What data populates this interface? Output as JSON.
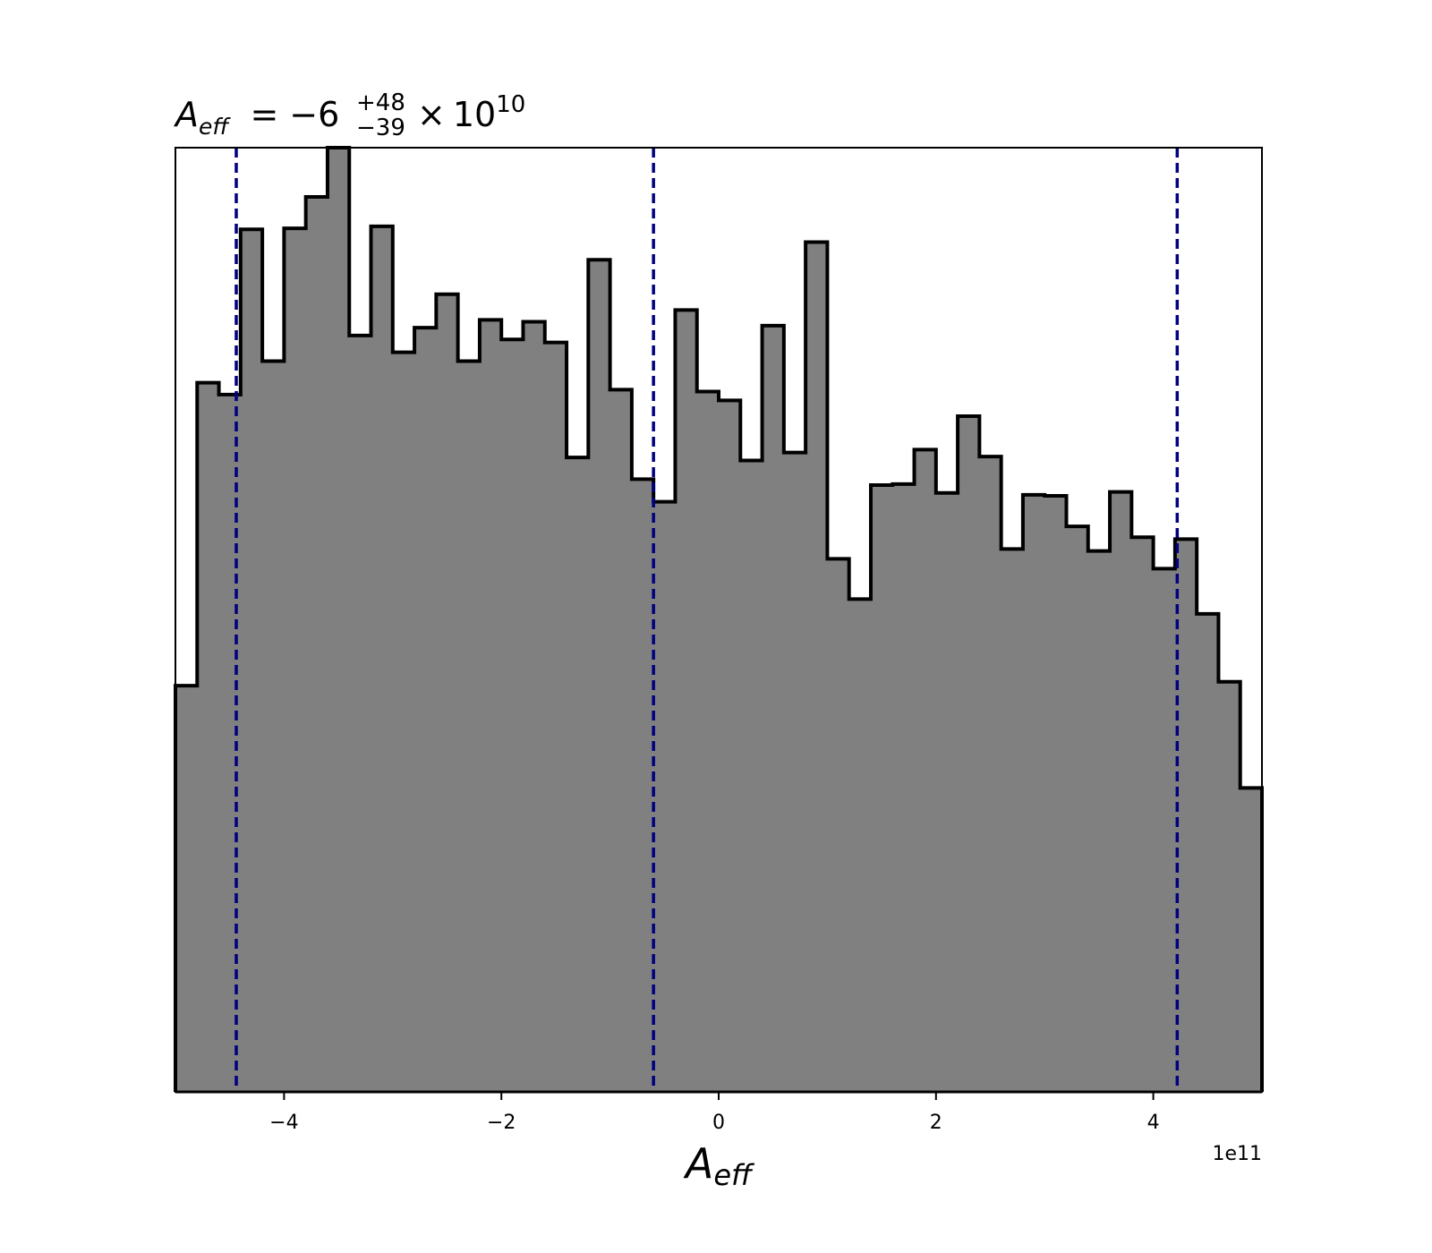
{
  "chart_data": {
    "type": "bar",
    "title": {
      "symbol": "A",
      "symbol_sub": "eff",
      "equals": "=",
      "value": "−6",
      "err_plus": "+48",
      "err_minus": "−39",
      "times": "×",
      "base": "10",
      "exponent": "10"
    },
    "xlabel": {
      "symbol": "A",
      "sub": "eff"
    },
    "offset_text": "1e11",
    "x_tick_values": [
      -4,
      -2,
      0,
      2,
      4
    ],
    "x_tick_labels": [
      "−4",
      "−2",
      "0",
      "2",
      "4"
    ],
    "xlim": [
      -5.0,
      5.0
    ],
    "ylim": [
      0,
      96
    ],
    "y_axis_visible": false,
    "grid": false,
    "bin_edges": [
      -5.0,
      -4.8,
      -4.6,
      -4.4,
      -4.2,
      -4.0,
      -3.8,
      -3.6,
      -3.4,
      -3.2,
      -3.0,
      -2.8,
      -2.6,
      -2.4,
      -2.2,
      -2.0,
      -1.8,
      -1.6,
      -1.4,
      -1.2,
      -1.0,
      -0.8,
      -0.6,
      -0.4,
      -0.2,
      0.0,
      0.2,
      0.4,
      0.6,
      0.8,
      1.0,
      1.2,
      1.4,
      1.6,
      1.8,
      2.0,
      2.2,
      2.4,
      2.6,
      2.8,
      3.0,
      3.2,
      3.4,
      3.6,
      3.8,
      4.0,
      4.2,
      4.4,
      4.6,
      4.8,
      5.0
    ],
    "counts": [
      41.3,
      72.1,
      70.9,
      87.7,
      74.3,
      87.8,
      91.0,
      96.0,
      76.9,
      88.0,
      75.2,
      77.7,
      81.1,
      74.3,
      78.5,
      76.5,
      78.3,
      76.2,
      64.5,
      84.6,
      71.4,
      62.3,
      60.0,
      79.5,
      71.2,
      70.3,
      64.2,
      77.9,
      65.0,
      86.4,
      54.2,
      50.1,
      61.7,
      61.8,
      65.3,
      60.9,
      68.7,
      64.6,
      55.2,
      60.7,
      60.6,
      57.5,
      55.0,
      61.0,
      56.4,
      53.2,
      56.2,
      48.6,
      41.7,
      30.9
    ],
    "quantile_lines": [
      -4.44,
      -0.6,
      4.22
    ],
    "colors": {
      "fill": "#808080",
      "edge": "#000000",
      "quantile": "#00007f",
      "axes": "#000000"
    }
  }
}
